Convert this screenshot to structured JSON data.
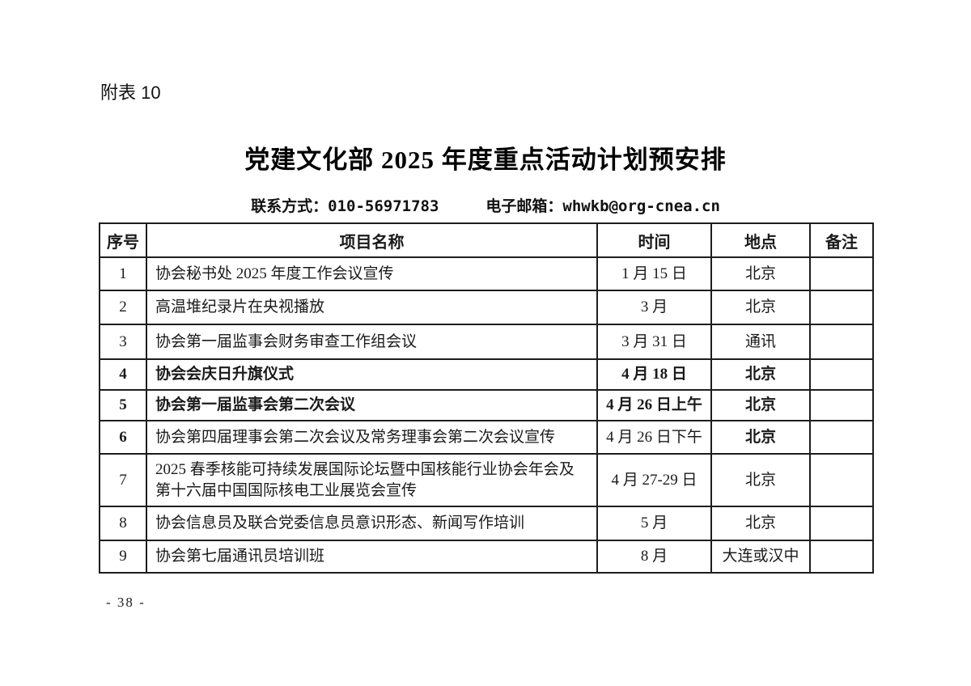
{
  "page": {
    "appendix_label": "附表 10",
    "title": "党建文化部 2025 年度重点活动计划预安排",
    "contact_label": "联系方式：",
    "contact_value": "010-56971783",
    "email_label": "电子邮箱：",
    "email_value": "whwkb@org-cnea.cn",
    "page_number": "- 38 -"
  },
  "table": {
    "headers": [
      "序号",
      "项目名称",
      "时间",
      "地点",
      "备注"
    ],
    "rows": [
      {
        "no": "1",
        "name": "协会秘书处 2025 年度工作会议宣传",
        "time": "1 月 15 日",
        "place": "北京",
        "note": "",
        "bold": {}
      },
      {
        "no": "2",
        "name": "高温堆纪录片在央视播放",
        "time": "3 月",
        "place": "北京",
        "note": "",
        "bold": {}
      },
      {
        "no": "3",
        "name": "协会第一届监事会财务审查工作组会议",
        "time": "3 月 31 日",
        "place": "通讯",
        "note": "",
        "bold": {}
      },
      {
        "no": "4",
        "name": "协会会庆日升旗仪式",
        "time": "4 月 18 日",
        "place": "北京",
        "note": "",
        "bold": {
          "no": true,
          "name": true,
          "time": true,
          "place": true
        }
      },
      {
        "no": "5",
        "name": "协会第一届监事会第二次会议",
        "time": "4 月 26 日上午",
        "place": "北京",
        "note": "",
        "bold": {
          "no": true,
          "name": true,
          "time": true,
          "place": true
        }
      },
      {
        "no": "6",
        "name": "协会第四届理事会第二次会议及常务理事会第二次会议宣传",
        "time": "4 月 26 日下午",
        "place": "北京",
        "note": "",
        "bold": {
          "no": true,
          "place": true
        }
      },
      {
        "no": "7",
        "name": "2025 春季核能可持续发展国际论坛暨中国核能行业协会年会及第十六届中国国际核电工业展览会宣传",
        "time": "4 月 27-29 日",
        "place": "北京",
        "note": "",
        "bold": {}
      },
      {
        "no": "8",
        "name": "协会信息员及联合党委信息员意识形态、新闻写作培训",
        "time": "5 月",
        "place": "北京",
        "note": "",
        "bold": {}
      },
      {
        "no": "9",
        "name": "协会第七届通讯员培训班",
        "time": "8 月",
        "place": "大连或汉中",
        "note": "",
        "bold": {}
      }
    ]
  }
}
